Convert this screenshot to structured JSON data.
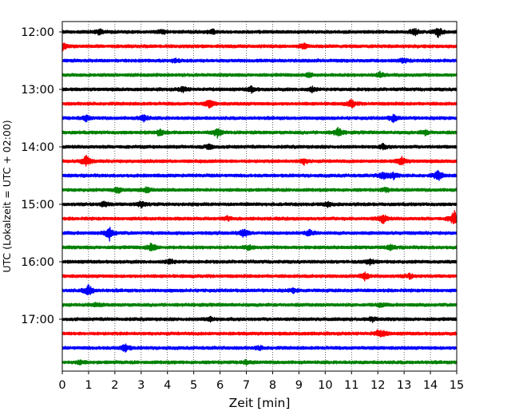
{
  "chart_data": {
    "type": "line",
    "title": "",
    "xlabel": "Zeit  [min]",
    "ylabel": "UTC (Lokalzeit = UTC + 02:00)",
    "xlim": [
      0,
      15
    ],
    "x_ticks": [
      0,
      1,
      2,
      3,
      4,
      5,
      6,
      7,
      8,
      9,
      10,
      11,
      12,
      13,
      14,
      15
    ],
    "grid": "vertical dotted lines at each minute",
    "trace_colors": [
      "#000000",
      "#ff0000",
      "#0000ff",
      "#008000"
    ],
    "y_tick_labels": [
      "12:00",
      "13:00",
      "14:00",
      "15:00",
      "16:00",
      "17:00"
    ],
    "traces": [
      {
        "start": "12:00",
        "color": "#000000",
        "events": [
          [
            1.4,
            0.6
          ],
          [
            3.8,
            0.5
          ],
          [
            5.7,
            0.5
          ],
          [
            13.4,
            0.7
          ],
          [
            14.3,
            1.1
          ]
        ]
      },
      {
        "start": "12:15",
        "color": "#ff0000",
        "events": [
          [
            0.0,
            0.9
          ],
          [
            9.2,
            0.5
          ]
        ]
      },
      {
        "start": "12:30",
        "color": "#0000ff",
        "events": [
          [
            4.3,
            0.4
          ],
          [
            13.0,
            0.5
          ]
        ]
      },
      {
        "start": "12:45",
        "color": "#008000",
        "events": [
          [
            9.4,
            0.5
          ],
          [
            12.1,
            0.6
          ]
        ]
      },
      {
        "start": "13:00",
        "color": "#000000",
        "events": [
          [
            4.6,
            0.6
          ],
          [
            7.2,
            0.6
          ],
          [
            9.5,
            0.5
          ]
        ]
      },
      {
        "start": "13:15",
        "color": "#ff0000",
        "events": [
          [
            5.6,
            0.9
          ],
          [
            11.0,
            0.9
          ]
        ]
      },
      {
        "start": "13:30",
        "color": "#0000ff",
        "events": [
          [
            0.9,
            0.6
          ],
          [
            3.1,
            0.8
          ],
          [
            12.6,
            0.8
          ]
        ]
      },
      {
        "start": "13:45",
        "color": "#008000",
        "events": [
          [
            3.7,
            0.7
          ],
          [
            5.9,
            1.0
          ],
          [
            10.5,
            1.0
          ],
          [
            13.8,
            0.5
          ]
        ]
      },
      {
        "start": "14:00",
        "color": "#000000",
        "events": [
          [
            5.6,
            0.6
          ],
          [
            12.2,
            0.5
          ]
        ]
      },
      {
        "start": "14:15",
        "color": "#ff0000",
        "events": [
          [
            0.9,
            1.3
          ],
          [
            9.2,
            0.6
          ],
          [
            12.9,
            1.0
          ]
        ]
      },
      {
        "start": "14:30",
        "color": "#0000ff",
        "events": [
          [
            12.2,
            0.9
          ],
          [
            12.6,
            0.7
          ],
          [
            14.3,
            1.2
          ]
        ]
      },
      {
        "start": "14:45",
        "color": "#008000",
        "events": [
          [
            2.1,
            0.7
          ],
          [
            3.2,
            0.6
          ],
          [
            12.3,
            0.4
          ]
        ]
      },
      {
        "start": "15:00",
        "color": "#000000",
        "events": [
          [
            1.6,
            0.6
          ],
          [
            3.0,
            0.7
          ],
          [
            10.1,
            0.5
          ]
        ]
      },
      {
        "start": "15:15",
        "color": "#ff0000",
        "events": [
          [
            6.3,
            0.4
          ],
          [
            12.2,
            1.0
          ],
          [
            14.9,
            1.8
          ]
        ]
      },
      {
        "start": "15:30",
        "color": "#0000ff",
        "events": [
          [
            1.8,
            1.5
          ],
          [
            6.9,
            0.9
          ],
          [
            9.4,
            0.6
          ]
        ]
      },
      {
        "start": "15:45",
        "color": "#008000",
        "events": [
          [
            3.4,
            1.0
          ],
          [
            7.1,
            0.5
          ],
          [
            12.5,
            0.5
          ]
        ]
      },
      {
        "start": "16:00",
        "color": "#000000",
        "events": [
          [
            4.1,
            0.6
          ],
          [
            11.7,
            0.6
          ]
        ]
      },
      {
        "start": "16:15",
        "color": "#ff0000",
        "events": [
          [
            11.5,
            0.9
          ],
          [
            13.2,
            0.5
          ]
        ]
      },
      {
        "start": "16:30",
        "color": "#0000ff",
        "events": [
          [
            1.0,
            1.3
          ],
          [
            8.8,
            0.4
          ]
        ]
      },
      {
        "start": "16:45",
        "color": "#008000",
        "events": [
          [
            1.3,
            0.4
          ],
          [
            12.1,
            0.4
          ]
        ]
      },
      {
        "start": "17:00",
        "color": "#000000",
        "events": [
          [
            5.6,
            0.5
          ],
          [
            11.8,
            0.5
          ]
        ]
      },
      {
        "start": "17:15",
        "color": "#ff0000",
        "events": [
          [
            12.0,
            0.5
          ],
          [
            12.2,
            0.5
          ]
        ]
      },
      {
        "start": "17:30",
        "color": "#0000ff",
        "events": [
          [
            2.4,
            0.9
          ],
          [
            7.5,
            0.4
          ]
        ]
      },
      {
        "start": "17:45",
        "color": "#008000",
        "events": [
          [
            0.7,
            0.4
          ],
          [
            7.0,
            0.4
          ]
        ]
      }
    ]
  }
}
